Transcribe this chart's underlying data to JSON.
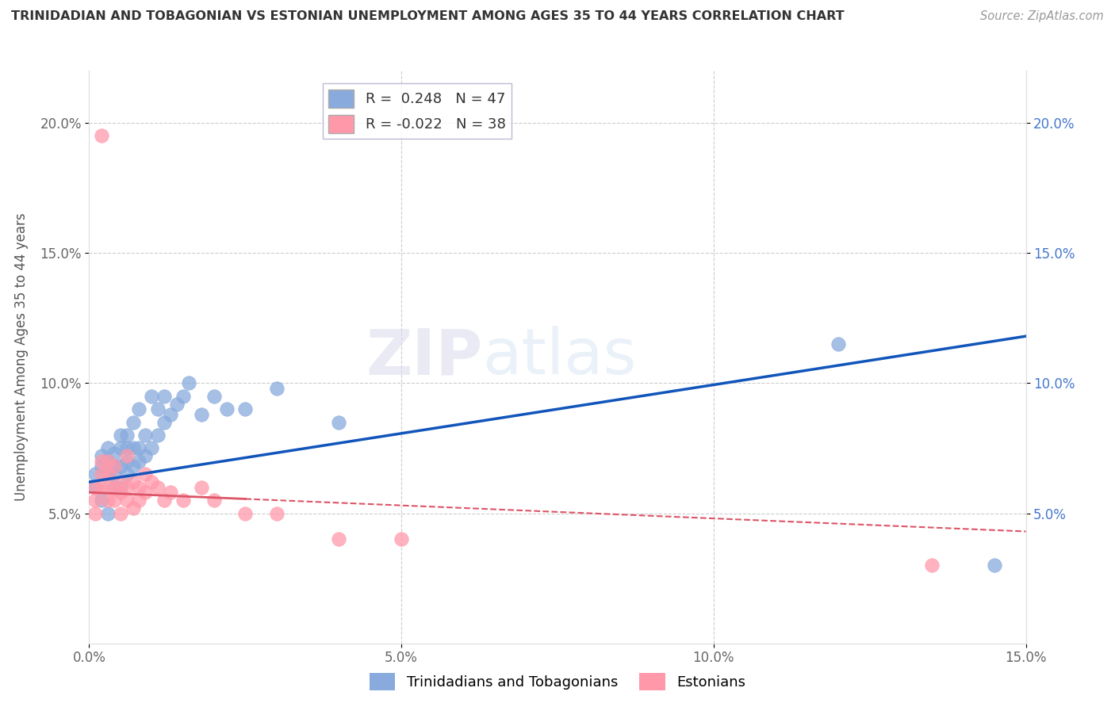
{
  "title": "TRINIDADIAN AND TOBAGONIAN VS ESTONIAN UNEMPLOYMENT AMONG AGES 35 TO 44 YEARS CORRELATION CHART",
  "source": "Source: ZipAtlas.com",
  "ylabel": "Unemployment Among Ages 35 to 44 years",
  "xlim": [
    0.0,
    0.15
  ],
  "ylim": [
    0.0,
    0.22
  ],
  "xticks": [
    0.0,
    0.05,
    0.1,
    0.15
  ],
  "yticks": [
    0.05,
    0.1,
    0.15,
    0.2
  ],
  "xtick_labels": [
    "0.0%",
    "5.0%",
    "10.0%",
    "15.0%"
  ],
  "ytick_labels_left": [
    "5.0%",
    "10.0%",
    "15.0%",
    "20.0%"
  ],
  "ytick_labels_right": [
    "5.0%",
    "10.0%",
    "15.0%",
    "20.0%"
  ],
  "blue_R": 0.248,
  "blue_N": 47,
  "pink_R": -0.022,
  "pink_N": 38,
  "blue_color": "#88AADD",
  "pink_color": "#FF99AA",
  "blue_line_color": "#1155BB",
  "pink_line_color": "#DD5566",
  "watermark_zip": "ZIP",
  "watermark_atlas": "atlas",
  "blue_trend_x0": 0.0,
  "blue_trend_y0": 0.062,
  "blue_trend_x1": 0.15,
  "blue_trend_y1": 0.118,
  "pink_trend_x0": 0.0,
  "pink_trend_y0": 0.058,
  "pink_trend_x1": 0.15,
  "pink_trend_y1": 0.043,
  "blue_scatter_x": [
    0.001,
    0.001,
    0.002,
    0.002,
    0.002,
    0.003,
    0.003,
    0.003,
    0.003,
    0.004,
    0.004,
    0.004,
    0.004,
    0.005,
    0.005,
    0.005,
    0.005,
    0.006,
    0.006,
    0.006,
    0.006,
    0.007,
    0.007,
    0.007,
    0.008,
    0.008,
    0.008,
    0.009,
    0.009,
    0.01,
    0.01,
    0.011,
    0.011,
    0.012,
    0.012,
    0.013,
    0.014,
    0.015,
    0.016,
    0.018,
    0.02,
    0.022,
    0.025,
    0.03,
    0.04,
    0.12,
    0.145
  ],
  "blue_scatter_y": [
    0.065,
    0.06,
    0.068,
    0.072,
    0.055,
    0.07,
    0.075,
    0.065,
    0.05,
    0.068,
    0.073,
    0.06,
    0.065,
    0.06,
    0.068,
    0.075,
    0.08,
    0.065,
    0.07,
    0.075,
    0.08,
    0.068,
    0.075,
    0.085,
    0.07,
    0.075,
    0.09,
    0.072,
    0.08,
    0.075,
    0.095,
    0.08,
    0.09,
    0.085,
    0.095,
    0.088,
    0.092,
    0.095,
    0.1,
    0.088,
    0.095,
    0.09,
    0.09,
    0.098,
    0.085,
    0.115,
    0.03
  ],
  "pink_scatter_x": [
    0.001,
    0.001,
    0.001,
    0.002,
    0.002,
    0.002,
    0.002,
    0.003,
    0.003,
    0.003,
    0.003,
    0.004,
    0.004,
    0.004,
    0.005,
    0.005,
    0.005,
    0.006,
    0.006,
    0.006,
    0.007,
    0.007,
    0.008,
    0.008,
    0.009,
    0.009,
    0.01,
    0.011,
    0.012,
    0.013,
    0.015,
    0.018,
    0.02,
    0.025,
    0.03,
    0.04,
    0.05,
    0.135
  ],
  "pink_scatter_y": [
    0.06,
    0.055,
    0.05,
    0.065,
    0.06,
    0.07,
    0.195,
    0.055,
    0.06,
    0.065,
    0.07,
    0.055,
    0.06,
    0.068,
    0.058,
    0.062,
    0.05,
    0.055,
    0.06,
    0.072,
    0.052,
    0.062,
    0.055,
    0.06,
    0.058,
    0.065,
    0.062,
    0.06,
    0.055,
    0.058,
    0.055,
    0.06,
    0.055,
    0.05,
    0.05,
    0.04,
    0.04,
    0.03
  ]
}
